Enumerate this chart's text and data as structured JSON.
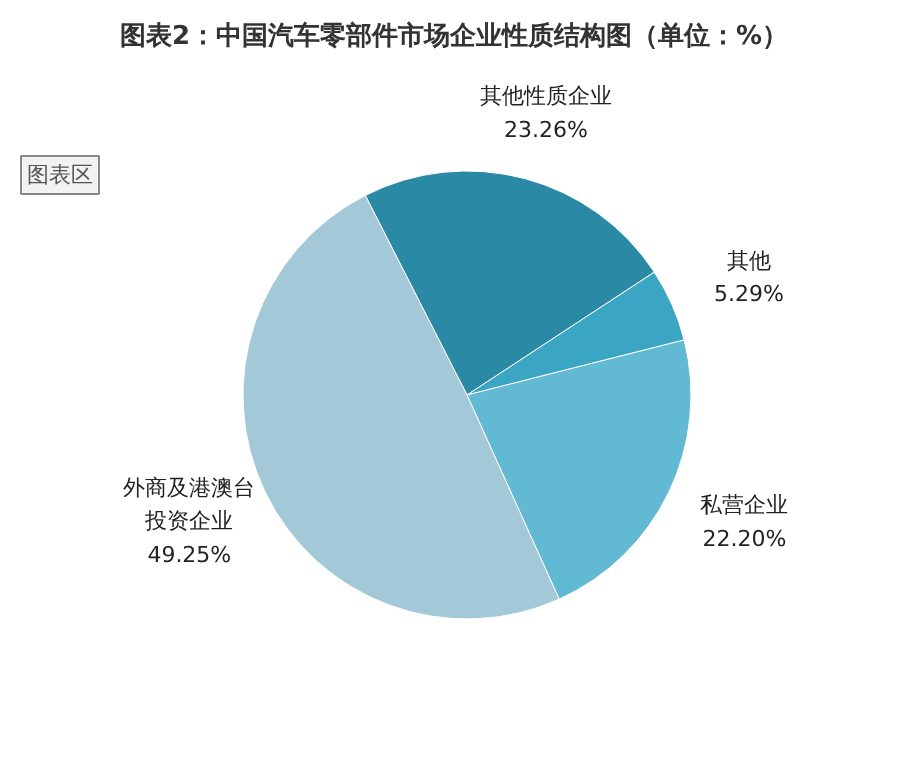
{
  "chart_data": {
    "type": "pie",
    "title": "图表2：中国汽车零部件市场企业性质结构图（单位：%）",
    "categories": [
      "其他性质企业",
      "其他",
      "私营企业",
      "外商及港澳台投资企业"
    ],
    "values": [
      23.26,
      5.29,
      22.2,
      49.25
    ],
    "value_labels": [
      "23.26%",
      "5.29%",
      "22.20%",
      "49.25%"
    ],
    "colors": [
      "#2a8aa5",
      "#3aa6c4",
      "#62b9d3",
      "#a3c9d8"
    ],
    "annotations": [
      "图表区"
    ]
  }
}
